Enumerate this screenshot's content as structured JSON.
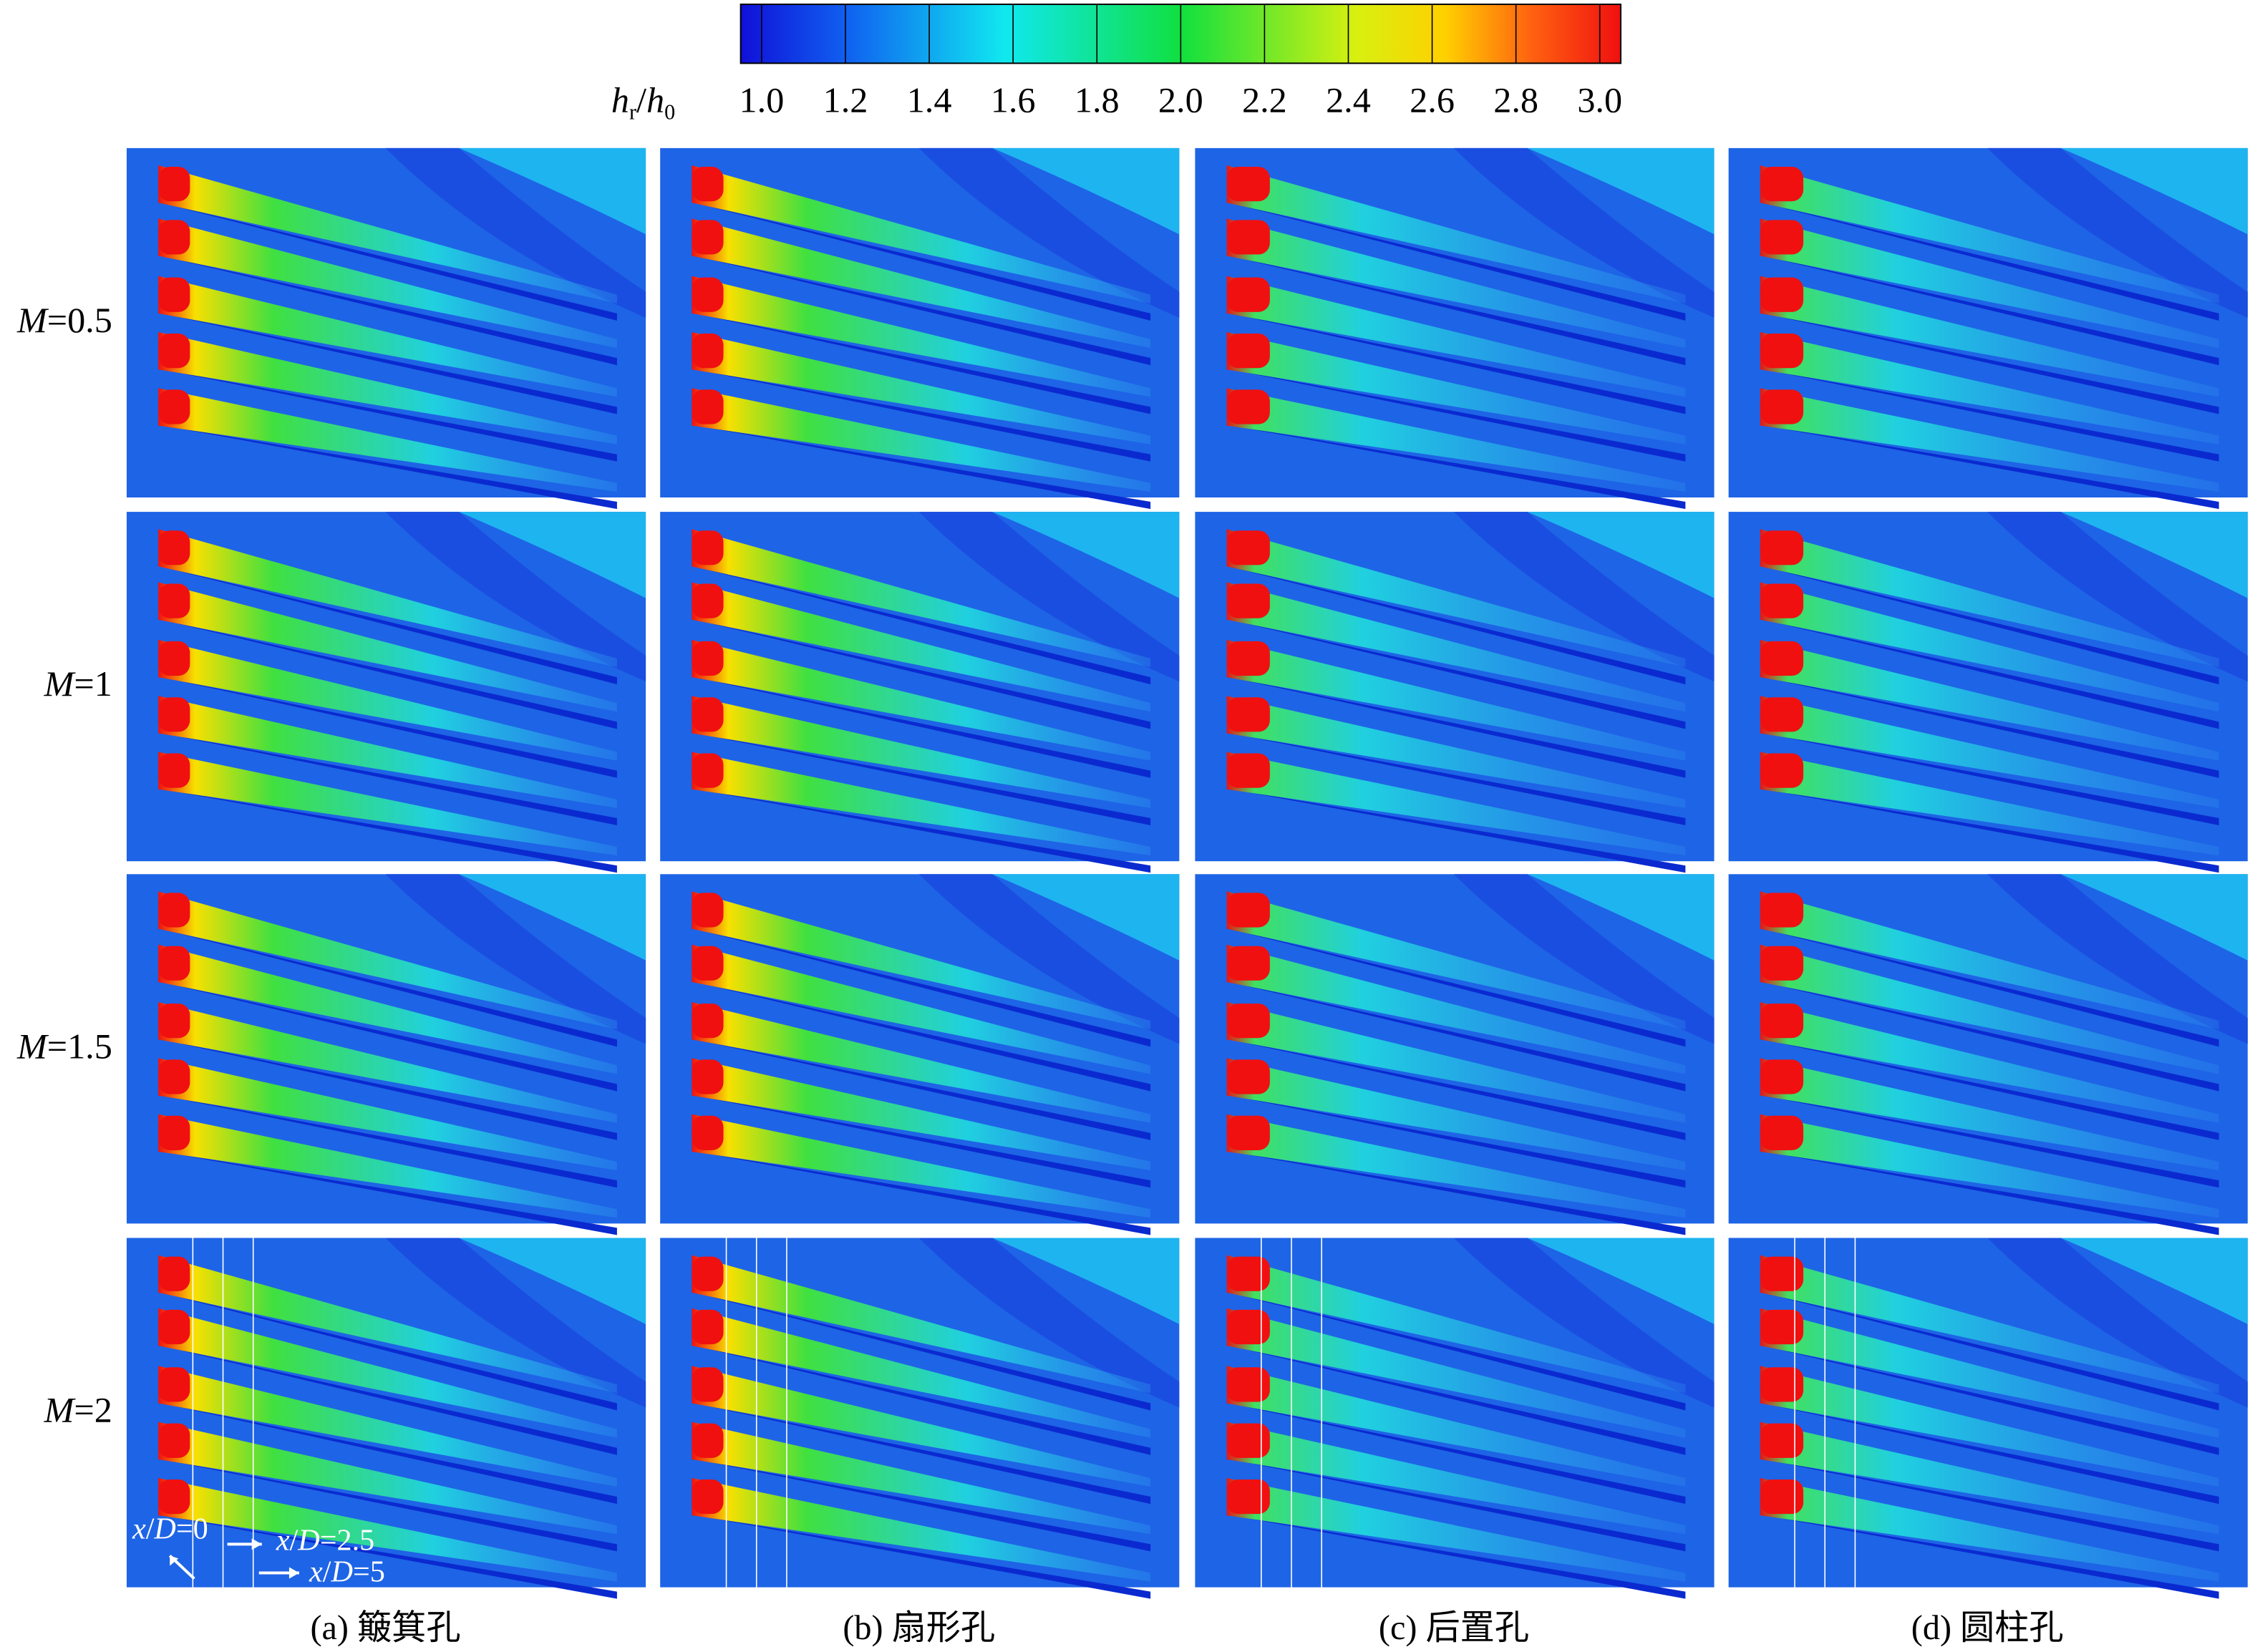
{
  "colorbar": {
    "label_parts": [
      "h",
      "r",
      "/",
      "h",
      "0"
    ],
    "clim": [
      0.95,
      3.05
    ],
    "ticks": [
      {
        "value": 1,
        "label": "1.0"
      },
      {
        "value": 1.2,
        "label": "1.2"
      },
      {
        "value": 1.4,
        "label": "1.4"
      },
      {
        "value": 1.6,
        "label": "1.6"
      },
      {
        "value": 1.8,
        "label": "1.8"
      },
      {
        "value": 2,
        "label": "2.0"
      },
      {
        "value": 2.2,
        "label": "2.2"
      },
      {
        "value": 2.4,
        "label": "2.4"
      },
      {
        "value": 2.6,
        "label": "2.6"
      },
      {
        "value": 2.8,
        "label": "2.8"
      },
      {
        "value": 3,
        "label": "3.0"
      }
    ]
  },
  "rows": [
    {
      "var": "M",
      "rest": "=0.5"
    },
    {
      "var": "M",
      "rest": "=1"
    },
    {
      "var": "M",
      "rest": "=1.5"
    },
    {
      "var": "M",
      "rest": "=2"
    }
  ],
  "columns": [
    "(a) 簸箕孔",
    "(b) 扇形孔",
    "(c) 后置孔",
    "(d) 圆柱孔"
  ],
  "annotations": [
    {
      "var": "x",
      "sep": "/",
      "var2": "D",
      "rest": "=0"
    },
    {
      "var": "x",
      "sep": "/",
      "var2": "D",
      "rest": "=2.5"
    },
    {
      "var": "x",
      "sep": "/",
      "var2": "D",
      "rest": "=5"
    }
  ]
}
